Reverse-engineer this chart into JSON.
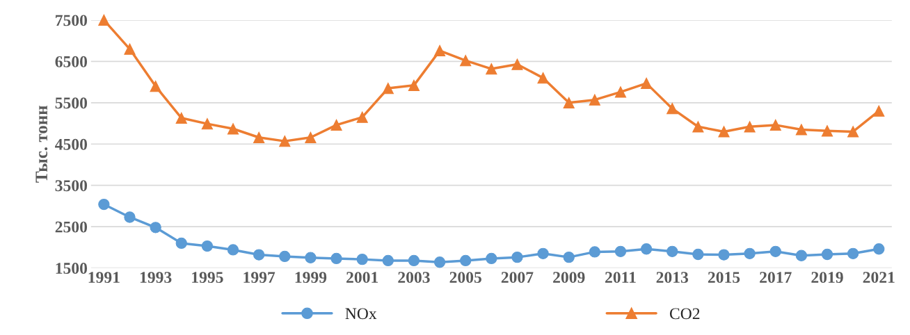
{
  "chart_data": {
    "type": "line",
    "ylabel": "Тыс. тонн",
    "categories": [
      "1991",
      null,
      "1993",
      null,
      "1995",
      null,
      "1997",
      null,
      "1999",
      null,
      "2001",
      null,
      "2003",
      null,
      "2005",
      null,
      "2007",
      null,
      "2009",
      null,
      "2011",
      null,
      "2013",
      null,
      "2015",
      null,
      "2017",
      null,
      "2019",
      null,
      "2021"
    ],
    "series": [
      {
        "name": "NOx",
        "color": "#5b9bd5",
        "marker": "circle",
        "values": [
          3040,
          2730,
          2480,
          2100,
          2030,
          1940,
          1820,
          1780,
          1750,
          1730,
          1710,
          1680,
          1680,
          1640,
          1680,
          1730,
          1760,
          1850,
          1760,
          1890,
          1900,
          1960,
          1900,
          1830,
          1820,
          1850,
          1900,
          1800,
          1830,
          1850,
          1960
        ]
      },
      {
        "name": "CO2",
        "color": "#ed7d31",
        "marker": "triangle",
        "values": [
          7500,
          6800,
          5900,
          5130,
          4990,
          4870,
          4660,
          4570,
          4660,
          4960,
          5150,
          5850,
          5920,
          6760,
          6520,
          6320,
          6430,
          6100,
          5500,
          5570,
          5760,
          5970,
          5360,
          4920,
          4800,
          4920,
          4960,
          4850,
          4820,
          4800,
          5300
        ]
      }
    ],
    "ylim": [
      1500,
      7500
    ],
    "yticks": [
      1500,
      2500,
      3500,
      4500,
      5500,
      6500,
      7500
    ],
    "grid": "y",
    "legend": "bottom"
  }
}
